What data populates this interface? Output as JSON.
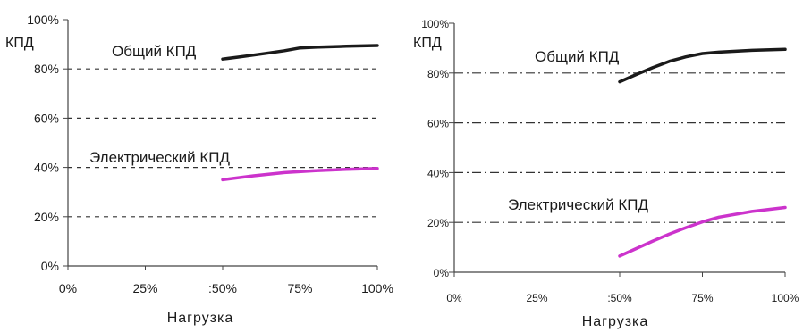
{
  "chart_data": [
    {
      "type": "line",
      "ylabel": "КПД",
      "xlabel": "Нагрузка",
      "x_ticks": [
        "0%",
        "25%",
        ":50%",
        "75%",
        "100%"
      ],
      "y_ticks": [
        "0%",
        "20%",
        "40%",
        "60%",
        "80%",
        "100%"
      ],
      "xlim": [
        0,
        100
      ],
      "ylim": [
        0,
        100
      ],
      "grid": "horizontal dashed at 20%, 40%, 60%, 80%",
      "series": [
        {
          "name": "Общий КПД",
          "color": "#1a1a1a",
          "x": [
            50,
            55,
            60,
            65,
            70,
            75,
            80,
            90,
            100
          ],
          "y": [
            84,
            84.8,
            85.6,
            86.5,
            87.4,
            88.5,
            88.8,
            89.2,
            89.5
          ]
        },
        {
          "name": "Электрический КПД",
          "color": "#cc33cc",
          "x": [
            50,
            60,
            70,
            80,
            90,
            100
          ],
          "y": [
            35,
            36.6,
            37.9,
            38.7,
            39.2,
            39.6
          ]
        }
      ]
    },
    {
      "type": "line",
      "ylabel": "КПД",
      "xlabel": "Нагрузка",
      "x_ticks": [
        "0%",
        "25%",
        ":50%",
        "75%",
        "100%"
      ],
      "y_ticks": [
        "0%",
        "20%",
        "40%",
        "60%",
        "80%",
        "100%"
      ],
      "xlim": [
        0,
        100
      ],
      "ylim": [
        0,
        100
      ],
      "grid": "horizontal dash-dot at 20%, 40%, 60%, 80%",
      "series": [
        {
          "name": "Общий КПД",
          "color": "#1a1a1a",
          "x": [
            50,
            55,
            60,
            65,
            70,
            75,
            80,
            90,
            100
          ],
          "y": [
            76.5,
            79.4,
            82.2,
            84.7,
            86.5,
            87.8,
            88.4,
            89.1,
            89.5
          ]
        },
        {
          "name": "Электрический КПД",
          "color": "#cc33cc",
          "x": [
            50,
            55,
            60,
            65,
            70,
            75,
            80,
            90,
            100
          ],
          "y": [
            6.5,
            9.5,
            12.5,
            15.3,
            17.9,
            20.2,
            22.1,
            24.4,
            26
          ]
        }
      ]
    }
  ]
}
